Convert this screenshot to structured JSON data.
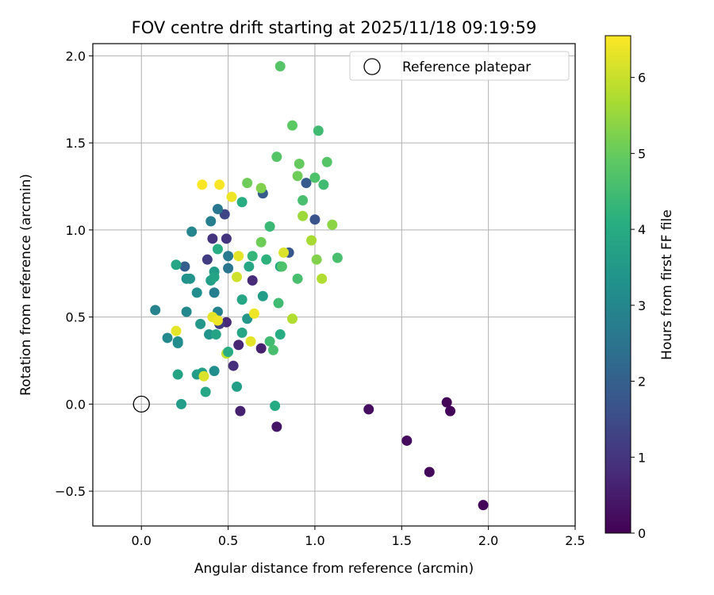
{
  "chart_data": {
    "type": "scatter",
    "title": "FOV centre drift starting at 2025/11/18 09:19:59",
    "xlabel": "Angular distance from reference (arcmin)",
    "ylabel": "Rotation from reference (arcmin)",
    "xlim": [
      -0.28,
      2.5
    ],
    "ylim": [
      -0.7,
      2.07
    ],
    "xticks": [
      0.0,
      0.5,
      1.0,
      1.5,
      2.0,
      2.5
    ],
    "xtick_labels": [
      "0.0",
      "0.5",
      "1.0",
      "1.5",
      "2.0",
      "2.5"
    ],
    "yticks": [
      -0.5,
      0.0,
      0.5,
      1.0,
      1.5,
      2.0
    ],
    "ytick_labels": [
      "−0.5",
      "0.0",
      "0.5",
      "1.0",
      "1.5",
      "2.0"
    ],
    "grid": true,
    "legend": {
      "position": "top-right",
      "entries": [
        {
          "label": "Reference platepar",
          "marker": "open-circle"
        }
      ]
    },
    "reference_point": {
      "x": 0.0,
      "y": 0.0
    },
    "colorbar": {
      "label": "Hours from first FF file",
      "colormap": "viridis",
      "range": [
        0,
        6.55
      ],
      "ticks": [
        0,
        1,
        2,
        3,
        4,
        5,
        6
      ],
      "tick_labels": [
        "0",
        "1",
        "2",
        "3",
        "4",
        "5",
        "6"
      ]
    },
    "points": [
      {
        "x": 1.97,
        "y": -0.58,
        "h": 0.1
      },
      {
        "x": 1.66,
        "y": -0.39,
        "h": 0.15
      },
      {
        "x": 1.53,
        "y": -0.21,
        "h": 0.2
      },
      {
        "x": 1.31,
        "y": -0.03,
        "h": 0.25
      },
      {
        "x": 1.76,
        "y": 0.01,
        "h": 0.05
      },
      {
        "x": 1.78,
        "y": -0.04,
        "h": 0.1
      },
      {
        "x": 0.78,
        "y": -0.13,
        "h": 0.4
      },
      {
        "x": 0.57,
        "y": -0.04,
        "h": 0.6
      },
      {
        "x": 0.69,
        "y": 0.32,
        "h": 0.6
      },
      {
        "x": 0.56,
        "y": 0.34,
        "h": 0.7
      },
      {
        "x": 0.53,
        "y": 0.22,
        "h": 0.9
      },
      {
        "x": 0.49,
        "y": 0.47,
        "h": 0.8
      },
      {
        "x": 0.45,
        "y": 0.46,
        "h": 1.2
      },
      {
        "x": 0.64,
        "y": 0.71,
        "h": 0.8
      },
      {
        "x": 0.38,
        "y": 0.83,
        "h": 1.2
      },
      {
        "x": 0.41,
        "y": 0.95,
        "h": 1.0
      },
      {
        "x": 0.49,
        "y": 0.95,
        "h": 1.0
      },
      {
        "x": 0.48,
        "y": 1.09,
        "h": 1.4
      },
      {
        "x": 0.25,
        "y": 0.79,
        "h": 2.0
      },
      {
        "x": 0.44,
        "y": 1.12,
        "h": 2.6
      },
      {
        "x": 0.4,
        "y": 1.05,
        "h": 2.8
      },
      {
        "x": 0.7,
        "y": 1.21,
        "h": 1.9
      },
      {
        "x": 0.85,
        "y": 0.87,
        "h": 1.8
      },
      {
        "x": 0.95,
        "y": 1.27,
        "h": 1.9
      },
      {
        "x": 1.0,
        "y": 1.06,
        "h": 1.7
      },
      {
        "x": 0.5,
        "y": 0.85,
        "h": 2.7
      },
      {
        "x": 0.5,
        "y": 0.78,
        "h": 2.6
      },
      {
        "x": 0.29,
        "y": 0.99,
        "h": 3.0
      },
      {
        "x": 0.26,
        "y": 0.72,
        "h": 3.3
      },
      {
        "x": 0.28,
        "y": 0.72,
        "h": 3.4
      },
      {
        "x": 0.42,
        "y": 0.64,
        "h": 2.8
      },
      {
        "x": 0.32,
        "y": 0.64,
        "h": 3.2
      },
      {
        "x": 0.44,
        "y": 0.53,
        "h": 2.9
      },
      {
        "x": 0.26,
        "y": 0.53,
        "h": 3.1
      },
      {
        "x": 0.08,
        "y": 0.54,
        "h": 2.9
      },
      {
        "x": 0.15,
        "y": 0.38,
        "h": 3.1
      },
      {
        "x": 0.21,
        "y": 0.36,
        "h": 3.3
      },
      {
        "x": 0.21,
        "y": 0.35,
        "h": 3.2
      },
      {
        "x": 0.39,
        "y": 0.4,
        "h": 3.4
      },
      {
        "x": 0.42,
        "y": 0.19,
        "h": 3.2
      },
      {
        "x": 0.32,
        "y": 0.17,
        "h": 3.6
      },
      {
        "x": 0.34,
        "y": 0.46,
        "h": 3.5
      },
      {
        "x": 0.4,
        "y": 0.71,
        "h": 3.7
      },
      {
        "x": 0.42,
        "y": 0.76,
        "h": 3.6
      },
      {
        "x": 0.42,
        "y": 0.73,
        "h": 3.8
      },
      {
        "x": 0.2,
        "y": 0.8,
        "h": 3.9
      },
      {
        "x": 0.21,
        "y": 0.17,
        "h": 3.8
      },
      {
        "x": 0.23,
        "y": 0.0,
        "h": 3.6
      },
      {
        "x": 0.35,
        "y": 0.18,
        "h": 3.7
      },
      {
        "x": 0.37,
        "y": 0.07,
        "h": 3.9
      },
      {
        "x": 0.55,
        "y": 0.1,
        "h": 3.7
      },
      {
        "x": 0.43,
        "y": 0.4,
        "h": 3.8
      },
      {
        "x": 0.58,
        "y": 0.41,
        "h": 3.9
      },
      {
        "x": 0.61,
        "y": 0.49,
        "h": 3.5
      },
      {
        "x": 0.58,
        "y": 0.6,
        "h": 3.9
      },
      {
        "x": 0.7,
        "y": 0.62,
        "h": 3.6
      },
      {
        "x": 0.62,
        "y": 0.79,
        "h": 3.9
      },
      {
        "x": 0.44,
        "y": 0.89,
        "h": 4.1
      },
      {
        "x": 0.58,
        "y": 1.16,
        "h": 4.1
      },
      {
        "x": 0.64,
        "y": 0.85,
        "h": 4.3
      },
      {
        "x": 0.72,
        "y": 0.83,
        "h": 4.2
      },
      {
        "x": 0.74,
        "y": 1.02,
        "h": 4.4
      },
      {
        "x": 0.8,
        "y": 0.79,
        "h": 3.8
      },
      {
        "x": 0.8,
        "y": 0.4,
        "h": 4.1
      },
      {
        "x": 0.77,
        "y": -0.01,
        "h": 4.0
      },
      {
        "x": 0.74,
        "y": 0.36,
        "h": 4.5
      },
      {
        "x": 0.76,
        "y": 0.31,
        "h": 4.6
      },
      {
        "x": 0.79,
        "y": 0.58,
        "h": 4.5
      },
      {
        "x": 0.81,
        "y": 0.79,
        "h": 4.7
      },
      {
        "x": 0.69,
        "y": 0.93,
        "h": 5.1
      },
      {
        "x": 0.61,
        "y": 1.27,
        "h": 5.1
      },
      {
        "x": 0.69,
        "y": 1.24,
        "h": 5.3
      },
      {
        "x": 0.78,
        "y": 1.42,
        "h": 4.8
      },
      {
        "x": 0.87,
        "y": 1.6,
        "h": 4.9
      },
      {
        "x": 0.8,
        "y": 1.94,
        "h": 4.8
      },
      {
        "x": 0.91,
        "y": 1.38,
        "h": 5.0
      },
      {
        "x": 0.9,
        "y": 1.31,
        "h": 5.1
      },
      {
        "x": 0.93,
        "y": 1.17,
        "h": 4.6
      },
      {
        "x": 0.9,
        "y": 0.72,
        "h": 4.6
      },
      {
        "x": 1.02,
        "y": 1.57,
        "h": 4.5
      },
      {
        "x": 1.0,
        "y": 1.3,
        "h": 4.7
      },
      {
        "x": 1.05,
        "y": 1.26,
        "h": 4.5
      },
      {
        "x": 1.07,
        "y": 1.39,
        "h": 4.8
      },
      {
        "x": 1.13,
        "y": 0.84,
        "h": 4.6
      },
      {
        "x": 1.01,
        "y": 0.83,
        "h": 5.3
      },
      {
        "x": 1.1,
        "y": 1.03,
        "h": 5.4
      },
      {
        "x": 0.93,
        "y": 1.08,
        "h": 5.6
      },
      {
        "x": 0.98,
        "y": 0.94,
        "h": 5.7
      },
      {
        "x": 1.04,
        "y": 0.72,
        "h": 5.8
      },
      {
        "x": 0.87,
        "y": 0.49,
        "h": 5.8
      },
      {
        "x": 0.82,
        "y": 0.87,
        "h": 6.2
      },
      {
        "x": 0.55,
        "y": 0.73,
        "h": 6.1
      },
      {
        "x": 0.56,
        "y": 0.85,
        "h": 6.3
      },
      {
        "x": 0.52,
        "y": 1.19,
        "h": 6.4
      },
      {
        "x": 0.45,
        "y": 1.26,
        "h": 6.5
      },
      {
        "x": 0.35,
        "y": 1.26,
        "h": 6.5
      },
      {
        "x": 0.65,
        "y": 0.52,
        "h": 6.4
      },
      {
        "x": 0.63,
        "y": 0.36,
        "h": 6.3
      },
      {
        "x": 0.41,
        "y": 0.5,
        "h": 6.3
      },
      {
        "x": 0.44,
        "y": 0.48,
        "h": 6.4
      },
      {
        "x": 0.49,
        "y": 0.29,
        "h": 6.0
      },
      {
        "x": 0.5,
        "y": 0.3,
        "h": 4.1
      },
      {
        "x": 0.36,
        "y": 0.16,
        "h": 6.2
      },
      {
        "x": 0.2,
        "y": 0.42,
        "h": 6.3
      }
    ]
  }
}
